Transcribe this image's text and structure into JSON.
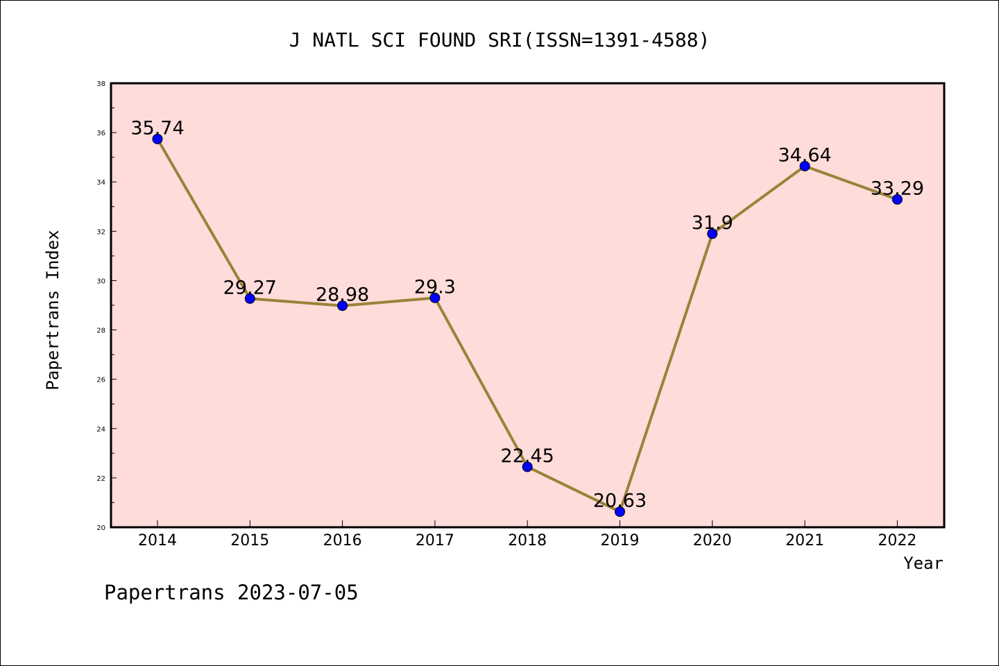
{
  "chart_data": {
    "type": "line",
    "title": "J NATL SCI FOUND SRI(ISSN=1391-4588)",
    "xlabel": "Year",
    "ylabel": "Papertrans Index",
    "ylim": [
      20,
      38
    ],
    "yticks": [
      20,
      22,
      24,
      26,
      28,
      30,
      32,
      34,
      36,
      38
    ],
    "categories": [
      "2014",
      "2015",
      "2016",
      "2017",
      "2018",
      "2019",
      "2020",
      "2021",
      "2022"
    ],
    "series": [
      {
        "values": [
          35.74,
          29.27,
          28.98,
          29.3,
          22.45,
          20.63,
          31.9,
          34.64,
          33.29
        ],
        "labels": [
          "35.74",
          "29.27",
          "28.98",
          "29.3",
          "22.45",
          "20.63",
          "31.9",
          "34.64",
          "33.29"
        ]
      }
    ],
    "grid": false,
    "colors": {
      "plot_background": "#fddcda",
      "line": "#9a8238",
      "marker": "#0000ff"
    }
  },
  "footer": {
    "watermark": "Papertrans 2023-07-05"
  }
}
